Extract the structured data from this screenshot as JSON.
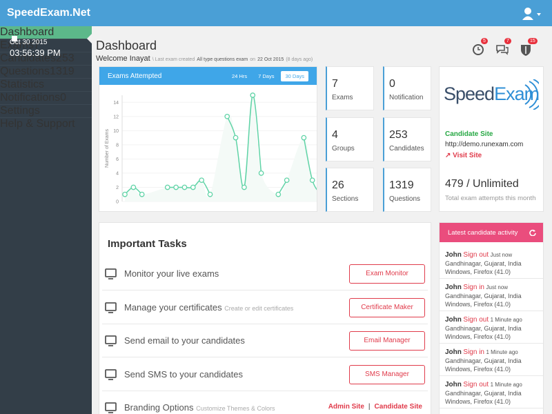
{
  "header": {
    "brand": "SpeedExam.Net"
  },
  "sidebar": {
    "date": "Oct 30 2015",
    "time": "03:56:39 PM",
    "menu": [
      {
        "label": "Dashboard"
      },
      {
        "label": "Exams",
        "badge": 7
      },
      {
        "label": "Candidates",
        "badge": 253
      },
      {
        "label": "Questions",
        "badge": 1319
      },
      {
        "label": "Statistics"
      },
      {
        "label": "Notifications",
        "badge": 0
      },
      {
        "label": "Settings"
      },
      {
        "label": "Help & Support"
      }
    ]
  },
  "page": {
    "title": "Dashboard",
    "welcome": "Welcome Inayat",
    "last_exam": {
      "prefix": "\\ Last exam created",
      "name": "All type questions exam",
      "on": "on",
      "date": "22 Oct 2015",
      "ago": "(8 days ago)"
    },
    "alerts": [
      5,
      7,
      15
    ]
  },
  "chart_data": {
    "type": "line",
    "title": "Exams Attempted",
    "ranges": [
      "24 Hrs",
      "7 Days",
      "30 Days"
    ],
    "y_label": "Number of Exams",
    "values": [
      1,
      2,
      1,
      null,
      null,
      2,
      2,
      2,
      2,
      3,
      1,
      null,
      12,
      9,
      2,
      15,
      4,
      null,
      1,
      3,
      null,
      9,
      3,
      1
    ],
    "color": "#5fd3a6",
    "ylim": [
      0,
      15
    ],
    "yticks": [
      0,
      2,
      4,
      6,
      8,
      10,
      12,
      14
    ],
    "grid": true
  },
  "stats": [
    {
      "value": 7,
      "label": "Exams"
    },
    {
      "value": 0,
      "label": "Notification"
    },
    {
      "value": 4,
      "label": "Groups"
    },
    {
      "value": 253,
      "label": "Candidates"
    },
    {
      "value": 26,
      "label": "Sections"
    },
    {
      "value": 1319,
      "label": "Questions"
    }
  ],
  "site_card": {
    "logo": [
      "Speed",
      "Exam"
    ],
    "site_label": "Candidate Site",
    "url": "http://demo.runexam.com",
    "link": "Visit Site",
    "attempts": 479,
    "limit": "/ Unlimited",
    "caption": "Total exam attempts this month"
  },
  "tasks": {
    "title": "Important Tasks",
    "items": [
      {
        "text": "Monitor your live exams",
        "button": "Exam Monitor"
      },
      {
        "text": "Manage your certificates",
        "hint": "Create or edit certificates",
        "button": "Certificate Maker"
      },
      {
        "text": "Send email to your candidates",
        "button": "Email Manager"
      },
      {
        "text": "Send SMS to your candidates",
        "button": "SMS Manager"
      },
      {
        "text": "Branding Options",
        "hint": "Customize Themes & Colors",
        "links": [
          "Admin Site",
          "Candidate Site"
        ]
      }
    ]
  },
  "activity": {
    "title": "Latest candidate activity",
    "items": [
      {
        "user": "John",
        "action": "Sign out",
        "time": "Just now",
        "location": "Gandhinagar, Gujarat, India",
        "client": "Windows, Firefox (41.0)"
      },
      {
        "user": "John",
        "action": "Sign in",
        "time": "Just now",
        "location": "Gandhinagar, Gujarat, India",
        "client": "Windows, Firefox (41.0)"
      },
      {
        "user": "John",
        "action": "Sign out",
        "time": "1 Minute ago",
        "location": "Gandhinagar, Gujarat, India",
        "client": "Windows, Firefox (41.0)"
      },
      {
        "user": "John",
        "action": "Sign in",
        "time": "1 Minute ago",
        "location": "Gandhinagar, Gujarat, India",
        "client": "Windows, Firefox (41.0)"
      },
      {
        "user": "John",
        "action": "Sign out",
        "time": "1 Minute ago",
        "location": "Gandhinagar, Gujarat, India",
        "client": "Windows, Firefox (41.0)"
      }
    ]
  }
}
